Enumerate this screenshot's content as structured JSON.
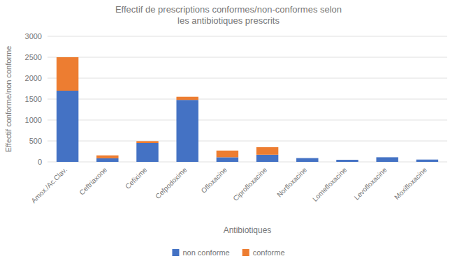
{
  "chart_data": {
    "type": "bar",
    "stacked": true,
    "title": "Effectif de prescriptions conformes/non-conformes selon\nles antibiotiques prescrits",
    "xlabel": "Antibiotiques",
    "ylabel": "Effectif conforme/non conforme",
    "categories": [
      "Amox./Ac.Clav.",
      "Ceftriaxone",
      "Cefixime",
      "Cefpodoxime",
      "Ofloxacine",
      "Ciprofloxacine",
      "Norfloxacine",
      "Lomefloxacine",
      "Levofloxacine",
      "Moxifloxacine"
    ],
    "series": [
      {
        "name": "non conforme",
        "color": "#4472c4",
        "values": [
          1700,
          85,
          450,
          1480,
          110,
          170,
          90,
          50,
          110,
          55
        ]
      },
      {
        "name": "conforme",
        "color": "#ed7d31",
        "values": [
          800,
          70,
          45,
          75,
          160,
          180,
          0,
          0,
          0,
          0
        ]
      }
    ],
    "ylim": [
      0,
      3000
    ],
    "yticks": [
      0,
      500,
      1000,
      1500,
      2000,
      2500,
      3000
    ],
    "grid": true,
    "legend": "bottom"
  }
}
